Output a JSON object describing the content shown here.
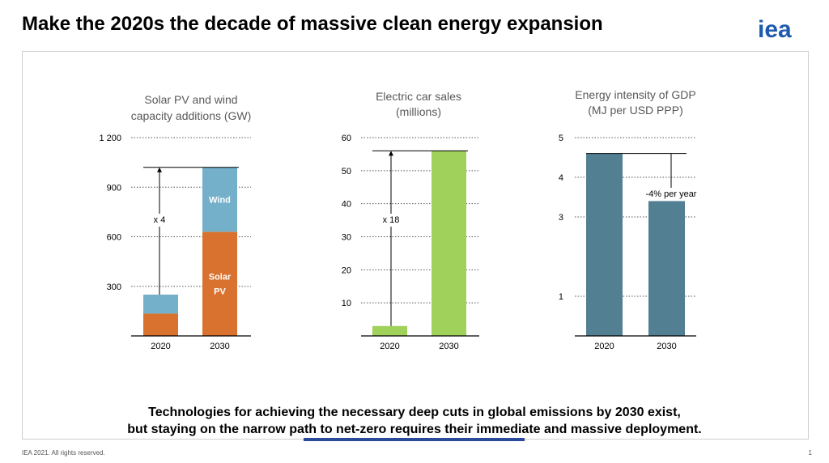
{
  "slide": {
    "title": "Make the 2020s the decade of massive clean energy expansion",
    "logo_text": "iea",
    "conclusion_line1": "Technologies for achieving the necessary deep cuts in global emissions by 2030 exist,",
    "conclusion_line2": "but staying on the narrow path to net-zero requires their immediate and massive deployment.",
    "footer_left": "IEA 2021. All rights reserved.",
    "page_number": "1"
  },
  "colors": {
    "solar": "#d9722f",
    "wind": "#74b0c9",
    "ev": "#9fd15b",
    "intensity": "#537f92",
    "logo": "#1f5bad",
    "axis": "#000000",
    "grid": "#555555",
    "subtitle_text": "#595959"
  },
  "chart_data": [
    {
      "type": "bar",
      "stacked": true,
      "title": "Solar PV and wind capacity additions (GW)",
      "title_lines": [
        "Solar PV and wind",
        "capacity additions (GW)"
      ],
      "categories": [
        "2020",
        "2030"
      ],
      "ylim": [
        0,
        1200
      ],
      "yticks": [
        300,
        600,
        900,
        1200
      ],
      "ytick_labels": [
        "300",
        "600",
        "900",
        "1 200"
      ],
      "series": [
        {
          "name": "Solar PV",
          "values": [
            135,
            630
          ],
          "label_lines": [
            "Solar",
            "PV"
          ]
        },
        {
          "name": "Wind",
          "values": [
            115,
            390
          ],
          "label_lines": [
            "Wind"
          ]
        }
      ],
      "annotation": {
        "text": "x 4",
        "from": 250,
        "to": 1020
      }
    },
    {
      "type": "bar",
      "title": "Electric car sales (millions)",
      "title_lines": [
        "Electric car sales",
        "(millions)"
      ],
      "categories": [
        "2020",
        "2030"
      ],
      "values": [
        3,
        56
      ],
      "ylim": [
        0,
        60
      ],
      "yticks": [
        10,
        20,
        30,
        40,
        50,
        60
      ],
      "ytick_labels": [
        "10",
        "20",
        "30",
        "40",
        "50",
        "60"
      ],
      "annotation": {
        "text": "x 18",
        "from": 3,
        "to": 56
      }
    },
    {
      "type": "bar",
      "title": "Energy intensity of GDP (MJ per USD PPP)",
      "title_lines": [
        "Energy intensity of GDP",
        "(MJ per USD PPP)"
      ],
      "categories": [
        "2020",
        "2030"
      ],
      "values": [
        4.6,
        3.4
      ],
      "ylim": [
        0,
        5
      ],
      "yticks": [
        1,
        3,
        4,
        5
      ],
      "ytick_labels": [
        "1",
        "3",
        "4",
        "5"
      ],
      "annotation": {
        "text": "-4% per year",
        "from": 4.6,
        "to": 3.4
      }
    }
  ]
}
